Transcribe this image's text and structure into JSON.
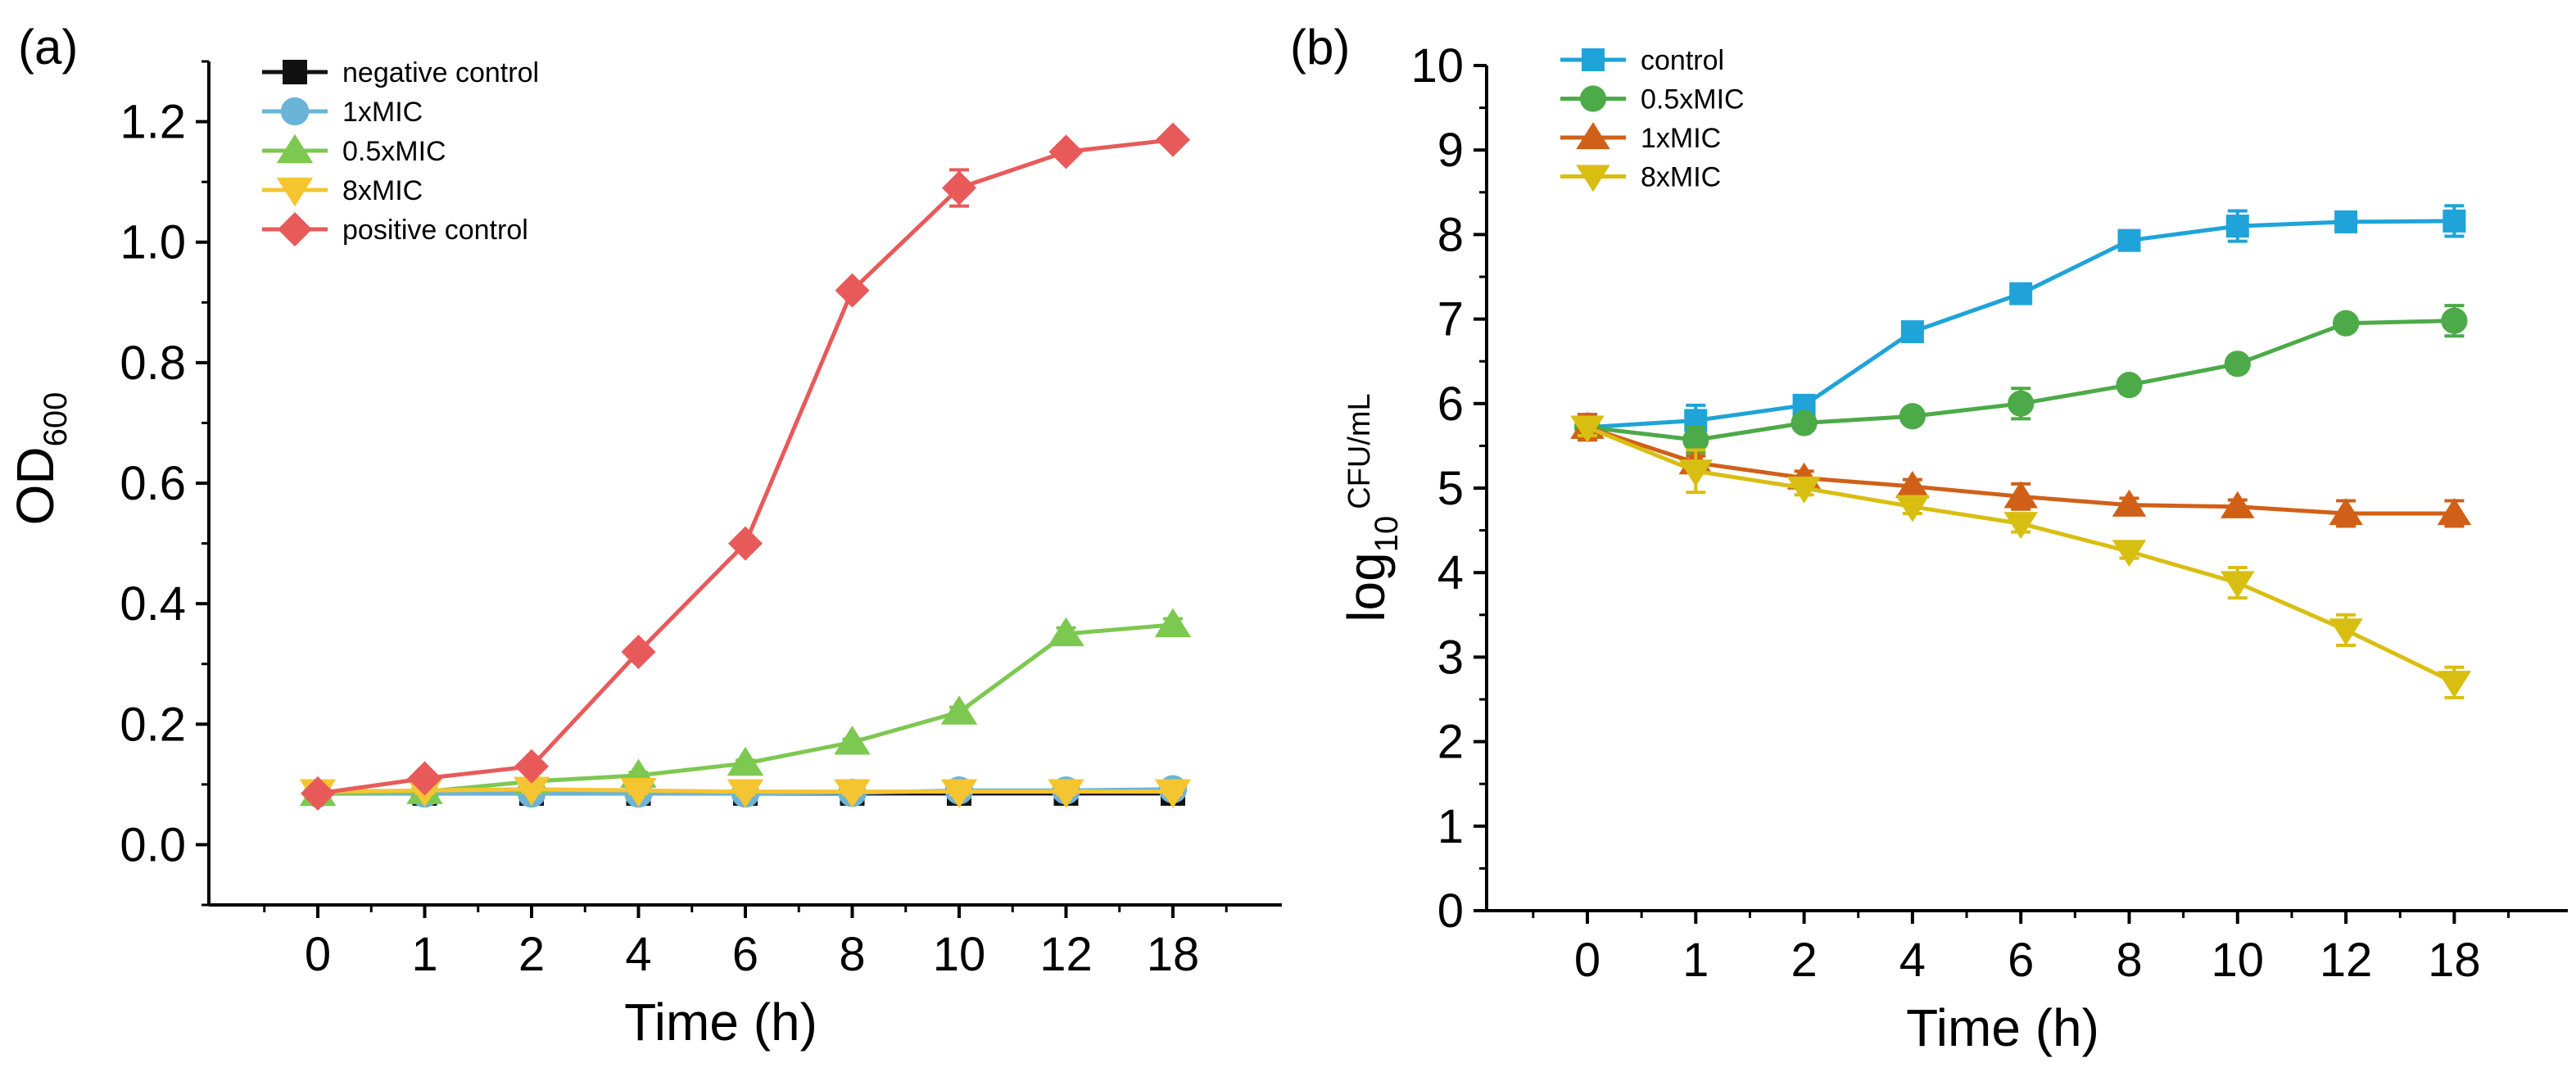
{
  "chart_data": [
    {
      "panel": "(a)",
      "type": "line",
      "xlabel": "Time (h)",
      "ylabel_main": "OD",
      "ylabel_sub": "600",
      "categories": [
        "0",
        "1",
        "2",
        "4",
        "6",
        "8",
        "10",
        "12",
        "18"
      ],
      "ylim": [
        -0.1,
        1.3
      ],
      "yticks": [
        0.0,
        0.2,
        0.4,
        0.6,
        0.8,
        1.0,
        1.2
      ],
      "ytick_labels": [
        "0.0",
        "0.2",
        "0.4",
        "0.6",
        "0.8",
        "1.0",
        "1.2"
      ],
      "legend_position": "top-left",
      "series": [
        {
          "name": "negative control",
          "color": "#111111",
          "marker": "square",
          "values": [
            0.085,
            0.085,
            0.085,
            0.085,
            0.085,
            0.085,
            0.085,
            0.085,
            0.085
          ],
          "errors": [
            0.005,
            0.005,
            0.005,
            0.005,
            0.005,
            0.005,
            0.005,
            0.005,
            0.005
          ]
        },
        {
          "name": "1xMIC",
          "color": "#6ab4d8",
          "marker": "circle",
          "values": [
            0.085,
            0.085,
            0.085,
            0.085,
            0.085,
            0.086,
            0.09,
            0.09,
            0.092
          ],
          "errors": [
            0.005,
            0.005,
            0.005,
            0.005,
            0.005,
            0.005,
            0.005,
            0.005,
            0.005
          ]
        },
        {
          "name": "0.5xMIC",
          "color": "#7dc850",
          "marker": "triangle-up",
          "values": [
            0.085,
            0.088,
            0.105,
            0.115,
            0.135,
            0.17,
            0.22,
            0.35,
            0.365
          ],
          "errors": [
            0.005,
            0.005,
            0.005,
            0.005,
            0.005,
            0.005,
            0.008,
            0.01,
            0.01
          ]
        },
        {
          "name": "8xMIC",
          "color": "#f5c531",
          "marker": "triangle-down",
          "values": [
            0.088,
            0.09,
            0.092,
            0.09,
            0.088,
            0.088,
            0.088,
            0.088,
            0.088
          ],
          "errors": [
            0.005,
            0.005,
            0.005,
            0.005,
            0.005,
            0.005,
            0.005,
            0.005,
            0.005
          ]
        },
        {
          "name": "positive control",
          "color": "#e85a5a",
          "marker": "diamond",
          "values": [
            0.085,
            0.11,
            0.13,
            0.32,
            0.5,
            0.92,
            1.09,
            1.15,
            1.17
          ],
          "errors": [
            0.005,
            0.005,
            0.005,
            0.01,
            0.01,
            0.01,
            0.03,
            0.01,
            0.01
          ]
        }
      ]
    },
    {
      "panel": "(b)",
      "type": "line",
      "xlabel": "Time (h)",
      "ylabel_main": "log",
      "ylabel_sub": "10",
      "ylabel_sup": "CFU/mL",
      "categories": [
        "0",
        "1",
        "2",
        "4",
        "6",
        "8",
        "10",
        "12",
        "18"
      ],
      "ylim": [
        0,
        10
      ],
      "yticks": [
        0,
        1,
        2,
        3,
        4,
        5,
        6,
        7,
        8,
        9,
        10
      ],
      "ytick_labels": [
        "0",
        "1",
        "2",
        "3",
        "4",
        "5",
        "6",
        "7",
        "8",
        "9",
        "10"
      ],
      "legend_position": "top-left",
      "series": [
        {
          "name": "control",
          "color": "#1fa3d8",
          "marker": "square",
          "values": [
            5.72,
            5.8,
            5.98,
            6.85,
            7.3,
            7.93,
            8.1,
            8.15,
            8.16
          ],
          "errors": [
            0.15,
            0.18,
            0.08,
            0.08,
            0.08,
            0.08,
            0.18,
            0.08,
            0.18
          ]
        },
        {
          "name": "0.5xMIC",
          "color": "#4caa48",
          "marker": "circle",
          "values": [
            5.72,
            5.57,
            5.77,
            5.85,
            6.0,
            6.22,
            6.47,
            6.95,
            6.98
          ],
          "errors": [
            0.15,
            0.15,
            0.08,
            0.08,
            0.18,
            0.08,
            0.08,
            0.08,
            0.18
          ]
        },
        {
          "name": "1xMIC",
          "color": "#d06018",
          "marker": "triangle-up",
          "values": [
            5.72,
            5.3,
            5.12,
            5.02,
            4.9,
            4.8,
            4.78,
            4.7,
            4.7
          ],
          "errors": [
            0.15,
            0.08,
            0.08,
            0.08,
            0.15,
            0.08,
            0.08,
            0.15,
            0.15
          ]
        },
        {
          "name": "8xMIC",
          "color": "#d9be12",
          "marker": "triangle-down",
          "values": [
            5.72,
            5.2,
            5.0,
            4.78,
            4.58,
            4.25,
            3.88,
            3.32,
            2.7
          ],
          "errors": [
            0.1,
            0.25,
            0.08,
            0.08,
            0.1,
            0.08,
            0.18,
            0.18,
            0.18
          ]
        }
      ]
    }
  ]
}
